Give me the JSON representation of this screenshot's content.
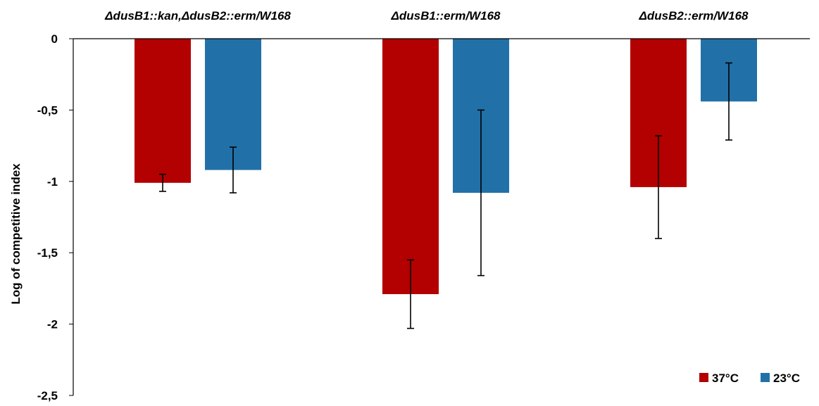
{
  "chart_data": {
    "type": "bar",
    "categories": [
      "ΔdusB1::kan,ΔdusB2::erm/W168",
      "ΔdusB1::erm/W168",
      "ΔdusB2::erm/W168"
    ],
    "series": [
      {
        "name": "37°C",
        "color": "#b30000",
        "values": [
          -1.01,
          -1.79,
          -1.04
        ],
        "errors": [
          0.06,
          0.24,
          0.36
        ]
      },
      {
        "name": "23°C",
        "color": "#2171a8",
        "values": [
          -0.92,
          -1.08,
          -0.44
        ],
        "errors": [
          0.16,
          0.58,
          0.27
        ]
      }
    ],
    "xlabel": "",
    "ylabel": "Log of competitive index",
    "ylim": [
      -2.5,
      0
    ],
    "yticks": [
      0,
      -0.5,
      -1,
      -1.5,
      -2,
      -2.5
    ],
    "ytick_labels": [
      "0",
      "-0,5",
      "-1",
      "-1,5",
      "-2",
      "-2,5"
    ],
    "category_labels_position": "top",
    "legend_position": "bottom-right",
    "grid": false
  }
}
